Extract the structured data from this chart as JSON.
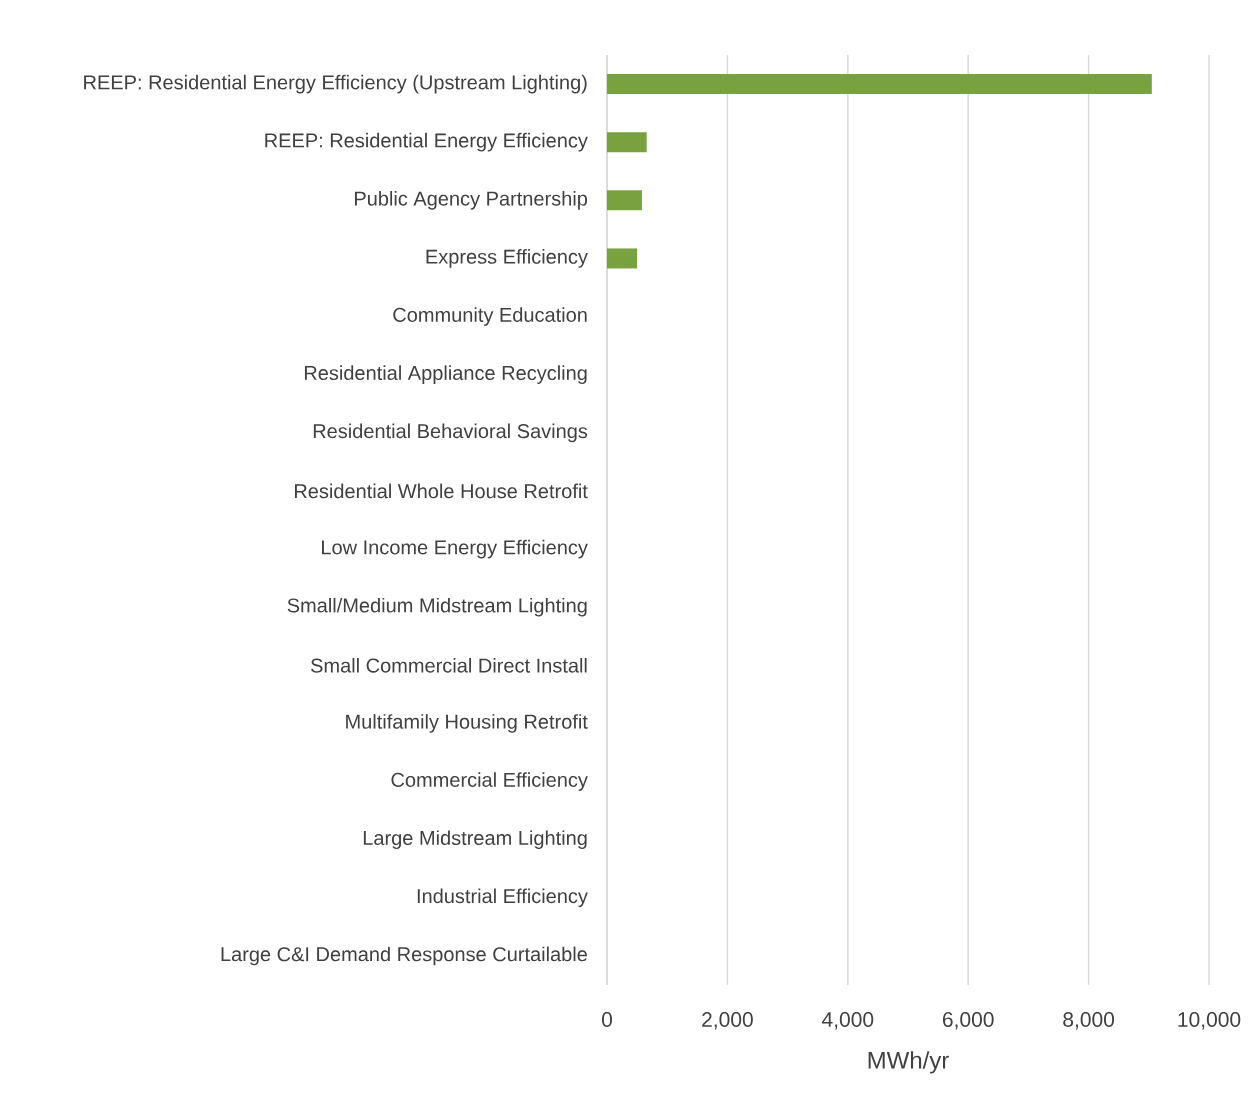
{
  "chart_data": {
    "type": "bar",
    "orientation": "horizontal",
    "xlabel": "MWh/yr",
    "categories": [
      "REEP: Residential Energy Efficiency (Upstream Lighting)",
      "REEP: Residential Energy Efficiency",
      "Public Agency Partnership",
      "Express Efficiency",
      "Community Education",
      "Residential Appliance Recycling",
      "Residential Behavioral Savings",
      "Residential Whole House Retrofit",
      "Low Income Energy Efficiency",
      "Small/Medium Midstream Lighting",
      "Small Commercial Direct Install",
      "Multifamily Housing Retrofit",
      "Commercial Efficiency",
      "Large Midstream Lighting",
      "Industrial Efficiency",
      "Large C&I Demand Response Curtailable"
    ],
    "values": [
      9050,
      660,
      580,
      500,
      0,
      0,
      0,
      0,
      0,
      0,
      0,
      0,
      0,
      0,
      0,
      0
    ],
    "color": "#77a23f",
    "xlim": [
      0,
      10000
    ],
    "xticks": [
      0,
      {
        "value": 2000,
        "label": "2,000"
      },
      {
        "value": 4000,
        "label": "4,000"
      },
      {
        "value": 6000,
        "label": "6,000"
      },
      {
        "value": 8000,
        "label": "8,000"
      },
      {
        "value": 10000,
        "label": "10,000"
      }
    ],
    "grid": "x"
  }
}
